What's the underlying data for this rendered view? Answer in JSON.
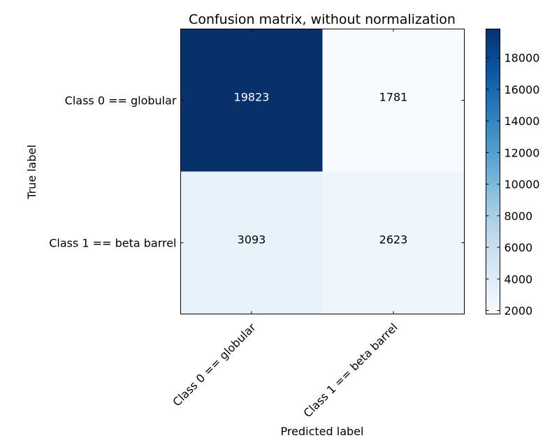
{
  "chart_data": {
    "type": "heatmap",
    "title": "Confusion matrix, without normalization",
    "xlabel": "Predicted label",
    "ylabel": "True label",
    "x_categories": [
      "Class 0 == globular",
      "Class 1 == beta barrel"
    ],
    "y_categories": [
      "Class 0 == globular",
      "Class 1 == beta barrel"
    ],
    "values": [
      [
        19823,
        1781
      ],
      [
        3093,
        2623
      ]
    ],
    "colormap": "Blues",
    "colorbar": {
      "min": 1781,
      "max": 19823,
      "ticks": [
        2000,
        4000,
        6000,
        8000,
        10000,
        12000,
        14000,
        16000,
        18000
      ],
      "tick_labels": [
        "2000",
        "4000",
        "6000",
        "8000",
        "10000",
        "12000",
        "14000",
        "16000",
        "18000"
      ]
    },
    "text_colors": {
      "light": "#ffffff",
      "dark": "#000000"
    }
  }
}
